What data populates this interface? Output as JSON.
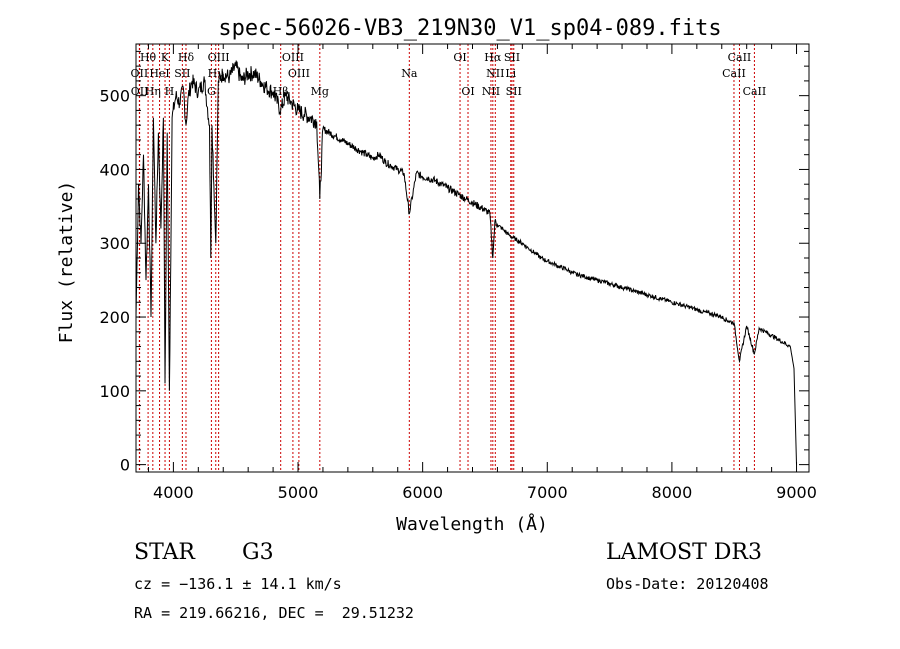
{
  "chart_data": {
    "type": "line",
    "title": "spec-56026-VB3_219N30_V1_sp04-089.fits",
    "xlabel": "Wavelength (Å)",
    "ylabel": "Flux (relative)",
    "xlim": [
      3700,
      9100
    ],
    "ylim": [
      -10,
      570
    ],
    "xticks": [
      4000,
      5000,
      6000,
      7000,
      8000,
      9000
    ],
    "yticks": [
      0,
      100,
      200,
      300,
      400,
      500
    ],
    "grid": false,
    "series": [
      {
        "name": "flux",
        "x": [
          3700,
          3720,
          3740,
          3760,
          3780,
          3800,
          3820,
          3840,
          3860,
          3880,
          3900,
          3920,
          3933,
          3950,
          3968,
          3990,
          4020,
          4050,
          4080,
          4101,
          4120,
          4150,
          4200,
          4250,
          4290,
          4300,
          4310,
          4340,
          4360,
          4400,
          4450,
          4500,
          4550,
          4600,
          4650,
          4700,
          4750,
          4800,
          4861,
          4900,
          4950,
          5000,
          5050,
          5100,
          5150,
          5175,
          5200,
          5250,
          5300,
          5350,
          5400,
          5450,
          5500,
          5550,
          5600,
          5650,
          5700,
          5750,
          5800,
          5850,
          5893,
          5950,
          6000,
          6050,
          6100,
          6150,
          6200,
          6250,
          6300,
          6350,
          6400,
          6450,
          6500,
          6540,
          6563,
          6580,
          6600,
          6650,
          6700,
          6750,
          6800,
          6850,
          6900,
          6950,
          7000,
          7050,
          7100,
          7150,
          7200,
          7250,
          7300,
          7350,
          7400,
          7450,
          7500,
          7550,
          7600,
          7650,
          7700,
          7750,
          7800,
          7850,
          7900,
          7950,
          8000,
          8050,
          8100,
          8150,
          8200,
          8250,
          8300,
          8350,
          8400,
          8450,
          8498,
          8542,
          8600,
          8662,
          8700,
          8750,
          8800,
          8850,
          8900,
          8950,
          8980,
          9000
        ],
        "y": [
          200,
          380,
          300,
          420,
          250,
          380,
          200,
          470,
          300,
          450,
          320,
          470,
          110,
          450,
          100,
          470,
          500,
          490,
          510,
          460,
          500,
          520,
          505,
          520,
          460,
          280,
          460,
          300,
          520,
          530,
          525,
          540,
          520,
          530,
          530,
          520,
          510,
          505,
          480,
          500,
          490,
          480,
          475,
          470,
          465,
          360,
          455,
          450,
          445,
          440,
          435,
          430,
          425,
          420,
          415,
          420,
          410,
          405,
          400,
          395,
          340,
          395,
          390,
          388,
          385,
          380,
          375,
          370,
          365,
          360,
          355,
          350,
          345,
          340,
          280,
          330,
          325,
          318,
          310,
          305,
          300,
          293,
          287,
          280,
          276,
          272,
          268,
          265,
          260,
          257,
          255,
          252,
          250,
          248,
          245,
          243,
          240,
          238,
          235,
          233,
          230,
          228,
          225,
          223,
          220,
          218,
          215,
          213,
          210,
          207,
          205,
          203,
          200,
          195,
          192,
          140,
          188,
          150,
          185,
          180,
          175,
          170,
          165,
          160,
          130,
          0
        ]
      }
    ],
    "lines": [
      {
        "name": "Hθ",
        "x": 3797,
        "row": 0
      },
      {
        "name": "K",
        "x": 3933,
        "row": 0
      },
      {
        "name": "Hδ",
        "x": 4101,
        "row": 0
      },
      {
        "name": "OIII",
        "x": 4363,
        "row": 0
      },
      {
        "name": "OIII",
        "x": 4959,
        "row": 0
      },
      {
        "name": "OI",
        "x": 6300,
        "row": 0
      },
      {
        "name": "Hα",
        "x": 6563,
        "row": 0
      },
      {
        "name": "SII",
        "x": 6717,
        "row": 0
      },
      {
        "name": "CaII",
        "x": 8542,
        "row": 0
      },
      {
        "name": "OII",
        "x": 3727,
        "row": 1
      },
      {
        "name": "HeI",
        "x": 3889,
        "row": 1
      },
      {
        "name": "SII",
        "x": 4072,
        "row": 1
      },
      {
        "name": "Hγ",
        "x": 4340,
        "row": 1
      },
      {
        "name": "OIII",
        "x": 5007,
        "row": 1
      },
      {
        "name": "Na",
        "x": 5893,
        "row": 1
      },
      {
        "name": "NII",
        "x": 6583,
        "row": 1
      },
      {
        "name": "Li",
        "x": 6707,
        "row": 1
      },
      {
        "name": "CaII",
        "x": 8498,
        "row": 1
      },
      {
        "name": "OII",
        "x": 3729,
        "row": 2
      },
      {
        "name": "Hη",
        "x": 3835,
        "row": 2
      },
      {
        "name": "H",
        "x": 3968,
        "row": 2
      },
      {
        "name": "G",
        "x": 4305,
        "row": 2
      },
      {
        "name": "Hβ",
        "x": 4861,
        "row": 2
      },
      {
        "name": "Mg",
        "x": 5175,
        "row": 2
      },
      {
        "name": "OI",
        "x": 6364,
        "row": 2
      },
      {
        "name": "NII",
        "x": 6548,
        "row": 2
      },
      {
        "name": "SII",
        "x": 6731,
        "row": 2
      },
      {
        "name": "CaII",
        "x": 8662,
        "row": 2
      }
    ]
  },
  "info": {
    "class": "STAR",
    "subclass": "G3",
    "survey": "LAMOST DR3",
    "cz": "cz = −136.1 ± 14.1 km/s",
    "obs_date": "Obs-Date: 20120408",
    "radec": "RA = 219.66216, DEC =  29.51232"
  },
  "colors": {
    "line": "#000000",
    "marker": "#cc0000"
  }
}
